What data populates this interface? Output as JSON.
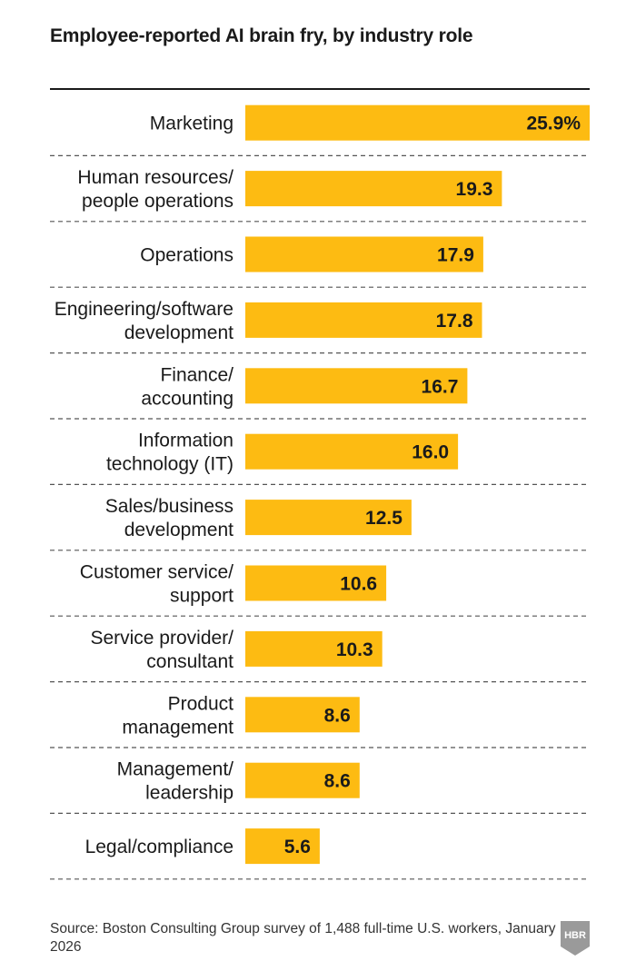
{
  "title": "Employee-reported AI brain fry, by industry role",
  "source": "Source: Boston Consulting Group survey of 1,488 full-time U.S. workers, January 2026",
  "logo_text": "HBR",
  "colors": {
    "bar": "#FDBB12",
    "text": "#1a1a1a",
    "rule": "#1a1a1a",
    "logo": "#9a9a9a"
  },
  "chart_data": {
    "type": "bar",
    "orientation": "horizontal",
    "title": "Employee-reported AI brain fry, by industry role",
    "xlim": [
      0,
      25.9
    ],
    "grid": false,
    "categories": [
      [
        "Marketing"
      ],
      [
        "Human resources/",
        "people operations"
      ],
      [
        "Operations"
      ],
      [
        "Engineering/software",
        "development"
      ],
      [
        "Finance/",
        "accounting"
      ],
      [
        "Information",
        "technology (IT)"
      ],
      [
        "Sales/business",
        "development"
      ],
      [
        "Customer service/",
        "support"
      ],
      [
        "Service provider/",
        "consultant"
      ],
      [
        "Product",
        "management"
      ],
      [
        "Management/",
        "leadership"
      ],
      [
        "Legal/compliance"
      ]
    ],
    "values": [
      25.9,
      19.3,
      17.9,
      17.8,
      16.7,
      16.0,
      12.5,
      10.6,
      10.3,
      8.6,
      8.6,
      5.6
    ],
    "value_labels": [
      "25.9%",
      "19.3",
      "17.9",
      "17.8",
      "16.7",
      "16.0",
      "12.5",
      "10.6",
      "10.3",
      "8.6",
      "8.6",
      "5.6"
    ]
  }
}
